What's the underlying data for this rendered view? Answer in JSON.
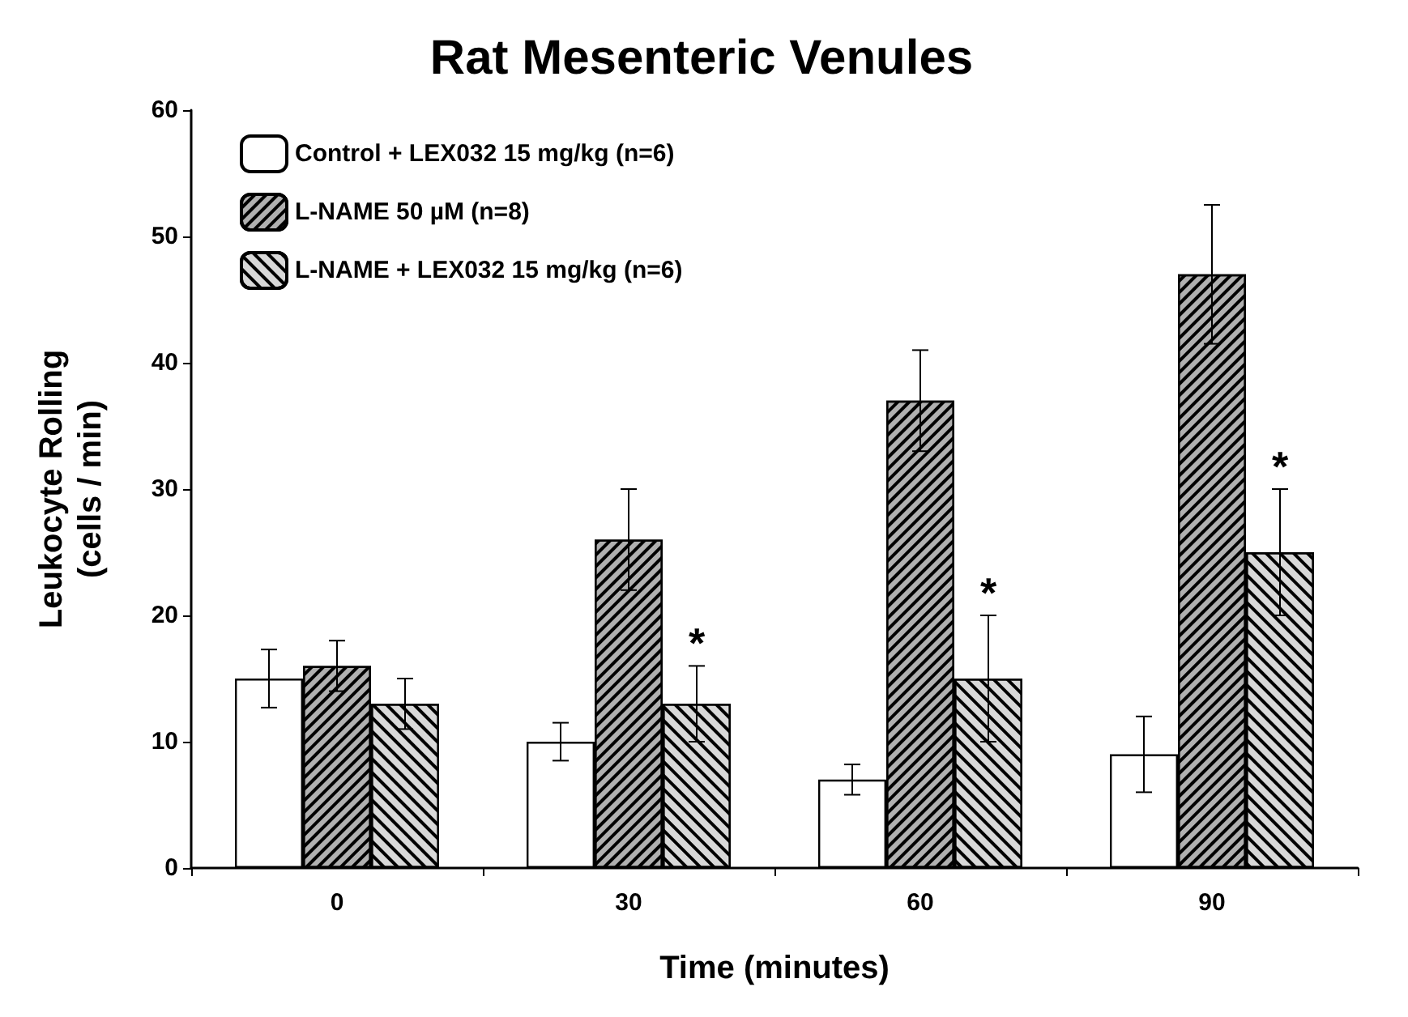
{
  "chart_data": {
    "type": "bar",
    "title": "Rat Mesenteric Venules",
    "xlabel": "Time (minutes)",
    "ylabel": "Leukocyte Rolling\n(cells / min)",
    "categories": [
      "0",
      "30",
      "60",
      "90"
    ],
    "series": [
      {
        "name": "Control + LEX032 15 mg/kg (n=6)",
        "color": "#ffffff",
        "values": [
          15,
          10,
          7,
          9
        ],
        "errors": [
          2.3,
          1.5,
          1.2,
          3
        ]
      },
      {
        "name": "L-NAME 50 µM (n=8)",
        "color": "#b0b0b0",
        "values": [
          16,
          26,
          37,
          47
        ],
        "errors": [
          2,
          4,
          4,
          5.5
        ]
      },
      {
        "name": "L-NAME + LEX032 15 mg/kg (n=6)",
        "color": "#d8d8d8",
        "values": [
          13,
          13,
          15,
          25
        ],
        "errors": [
          2,
          3,
          5,
          5
        ],
        "value_labels": [
          null,
          "*",
          "*",
          "*"
        ]
      }
    ],
    "ylim": [
      0,
      60
    ],
    "yticks": [
      0,
      10,
      20,
      30,
      40,
      50,
      60
    ],
    "grid": false,
    "legend": "top left"
  }
}
